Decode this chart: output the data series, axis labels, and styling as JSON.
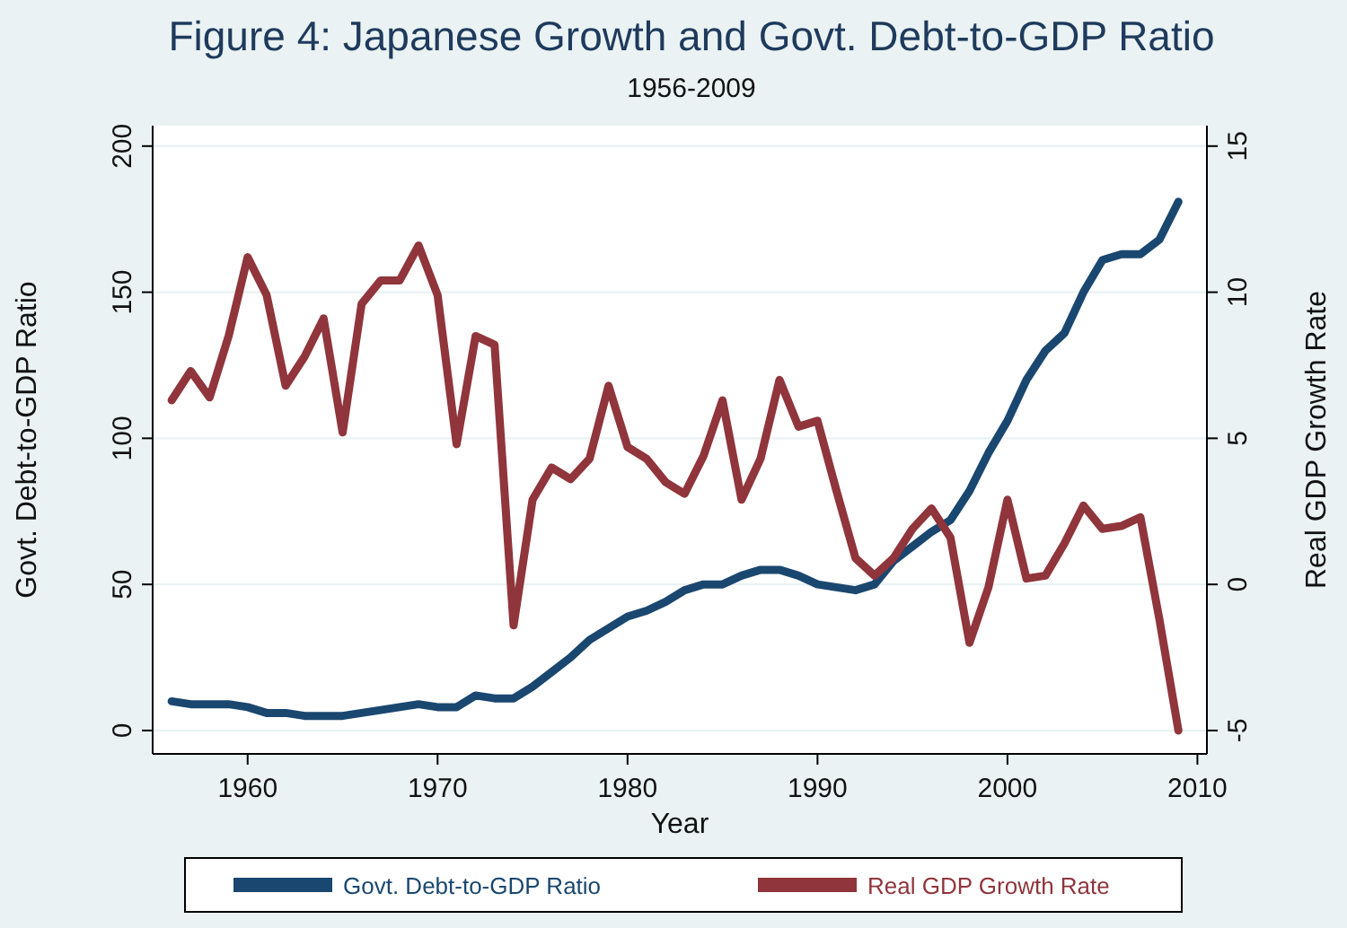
{
  "chart_data": {
    "type": "line",
    "title": "Figure 4: Japanese Growth and Govt. Debt-to-GDP Ratio",
    "subtitle": "1956-2009",
    "xlabel": "Year",
    "ylabel": "Govt. Debt-to-GDP Ratio",
    "y2label": "Real GDP Growth Rate",
    "x": [
      1956,
      1957,
      1958,
      1959,
      1960,
      1961,
      1962,
      1963,
      1964,
      1965,
      1966,
      1967,
      1968,
      1969,
      1970,
      1971,
      1972,
      1973,
      1974,
      1975,
      1976,
      1977,
      1978,
      1979,
      1980,
      1981,
      1982,
      1983,
      1984,
      1985,
      1986,
      1987,
      1988,
      1989,
      1990,
      1991,
      1992,
      1993,
      1994,
      1995,
      1996,
      1997,
      1998,
      1999,
      2000,
      2001,
      2002,
      2003,
      2004,
      2005,
      2006,
      2007,
      2008,
      2009
    ],
    "series": [
      {
        "name": "Govt. Debt-to-GDP Ratio",
        "color": "#1a476f",
        "values": [
          10,
          9,
          9,
          9,
          8,
          6,
          6,
          5,
          5,
          5,
          6,
          7,
          8,
          9,
          8,
          8,
          12,
          11,
          11,
          15,
          20,
          25,
          31,
          35,
          39,
          41,
          44,
          48,
          50,
          50,
          53,
          55,
          55,
          53,
          50,
          49,
          48,
          50,
          58,
          63,
          68,
          72,
          82,
          95,
          106,
          120,
          130,
          136,
          150,
          161,
          163,
          163,
          168,
          181
        ]
      },
      {
        "name": "Real GDP Growth Rate",
        "color": "#90353b",
        "axis": "y2",
        "values": [
          6.3,
          7.3,
          6.4,
          8.5,
          11.2,
          9.9,
          6.8,
          7.8,
          9.1,
          5.2,
          9.6,
          10.4,
          10.4,
          11.6,
          9.9,
          4.8,
          8.5,
          8.2,
          -1.4,
          2.9,
          4.0,
          3.6,
          4.3,
          6.8,
          4.7,
          4.3,
          3.5,
          3.1,
          4.4,
          6.3,
          2.9,
          4.3,
          7.0,
          5.4,
          5.6,
          3.2,
          0.9,
          0.3,
          0.9,
          1.9,
          2.6,
          1.6,
          -2.0,
          -0.1,
          2.9,
          0.2,
          0.3,
          1.4,
          2.7,
          1.9,
          2.0,
          2.3,
          -1.2,
          -5.0
        ]
      }
    ],
    "xlim": [
      1955,
      2010.5
    ],
    "xticks": [
      1960,
      1970,
      1980,
      1990,
      2000,
      2010
    ],
    "ylim": [
      -8,
      207
    ],
    "yticks": [
      0,
      50,
      100,
      150,
      200
    ],
    "y2lim": [
      -5.8,
      15.7
    ],
    "y2ticks": [
      -5,
      0,
      5,
      10,
      15
    ],
    "grid": "y",
    "legend": "bottom"
  }
}
